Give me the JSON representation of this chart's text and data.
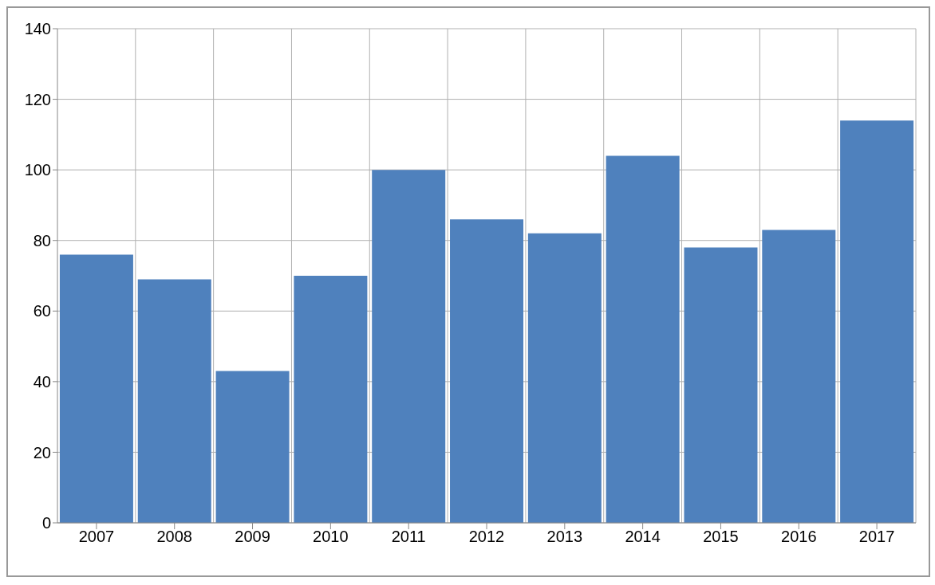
{
  "chart_data": {
    "type": "bar",
    "categories": [
      "2007",
      "2008",
      "2009",
      "2010",
      "2011",
      "2012",
      "2013",
      "2014",
      "2015",
      "2016",
      "2017"
    ],
    "values": [
      76,
      69,
      43,
      70,
      100,
      86,
      82,
      104,
      78,
      83,
      114
    ],
    "color": "#4f81bd",
    "ylim": [
      0,
      140
    ],
    "yticks": [
      0,
      20,
      40,
      60,
      80,
      100,
      120,
      140
    ],
    "grid": true
  }
}
